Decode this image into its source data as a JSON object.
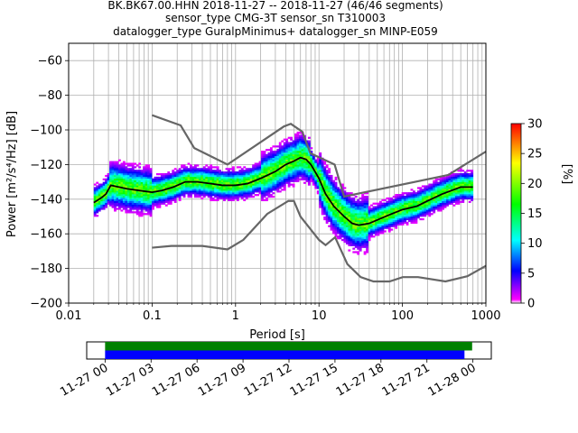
{
  "chart_data": [
    {
      "type": "heatmap",
      "title_lines": [
        "BK.BK67.00.HHN   2018-11-27 -- 2018-11-27  (46/46 segments)",
        "sensor_type CMG-3T sensor_sn T310003",
        "datalogger_type GuralpMinimus+ datalogger_sn MINP-E059"
      ],
      "xlabel": "Period [s]",
      "ylabel": "Power [m²/s⁴/Hz] [dB]",
      "x_scale": "log",
      "xlim": [
        0.01,
        1000
      ],
      "ylim": [
        -200,
        -50
      ],
      "x_ticks": [
        0.01,
        0.1,
        1,
        10,
        100,
        1000
      ],
      "x_tick_labels": [
        "0.01",
        "0.1",
        "1",
        "10",
        "100",
        "1000"
      ],
      "y_ticks": [
        -200,
        -180,
        -160,
        -140,
        -120,
        -100,
        -80,
        -60
      ],
      "y_tick_labels": [
        "−200",
        "−180",
        "−160",
        "−140",
        "−120",
        "−100",
        "−80",
        "−60"
      ],
      "grid": true,
      "colorbar": {
        "label": "[%]",
        "range": [
          0,
          30
        ],
        "ticks": [
          0,
          5,
          10,
          15,
          20,
          25,
          30
        ],
        "tick_labels": [
          "0",
          "5",
          "10",
          "15",
          "20",
          "25",
          "30"
        ],
        "colors": [
          "#ffffff",
          "#ff00ff",
          "#0000ff",
          "#00ffff",
          "#00ff00",
          "#ffff00",
          "#ff0000"
        ]
      },
      "nhnm": {
        "name": "NHNM",
        "x": [
          0.1,
          0.22,
          0.32,
          0.8,
          3.8,
          4.6,
          6.3,
          7.9,
          15.4,
          20,
          354.8,
          1000
        ],
        "y": [
          -91.5,
          -97.4,
          -110.5,
          -120,
          -98,
          -96.5,
          -101,
          -113.5,
          -120,
          -138.5,
          -126,
          -112.5
        ]
      },
      "nlnm": {
        "name": "NLNM",
        "x": [
          0.1,
          0.17,
          0.4,
          0.8,
          1.24,
          2.4,
          4.3,
          5.0,
          6.0,
          10.0,
          12.0,
          15.6,
          21.9,
          31.6,
          45.0,
          70.0,
          101.0,
          154.0,
          328.0,
          600.0,
          1000.0
        ],
        "y": [
          -168,
          -167,
          -167,
          -169,
          -163.5,
          -148.5,
          -141,
          -141,
          -150,
          -163.5,
          -166.5,
          -162,
          -177.5,
          -185,
          -187.5,
          -187.5,
          -185,
          -185,
          -187.5,
          -184.5,
          -178.5
        ]
      },
      "mode_curve": {
        "x": [
          0.02,
          0.025,
          0.028,
          0.032,
          0.04,
          0.05,
          0.07,
          0.1,
          0.13,
          0.18,
          0.25,
          0.35,
          0.5,
          0.7,
          1.0,
          1.4,
          2.0,
          3.0,
          4.0,
          5.0,
          6.0,
          7.0,
          8.0,
          10.0,
          12.0,
          15.0,
          20.0,
          25.0,
          30.0,
          40.0,
          50.0,
          70.0,
          100.0,
          150.0,
          200.0,
          300.0,
          500.0,
          700.0
        ],
        "y": [
          -142,
          -139,
          -137,
          -132,
          -133,
          -134,
          -135,
          -136,
          -135,
          -133,
          -130,
          -130,
          -131,
          -132,
          -132,
          -131,
          -128,
          -124,
          -120,
          -118,
          -116,
          -117,
          -120,
          -128,
          -137,
          -144,
          -150,
          -154,
          -155,
          -154,
          -152,
          -149,
          -146,
          -144,
          -141,
          -137,
          -133,
          -133
        ]
      },
      "time_axis": {
        "tick_labels": [
          "11-27 00",
          "11-27 03",
          "11-27 06",
          "11-27 09",
          "11-27 12",
          "11-27 15",
          "11-27 18",
          "11-27 21",
          "11-28 00"
        ],
        "tick_hours": [
          0,
          3,
          6,
          9,
          12,
          15,
          18,
          21,
          24
        ],
        "range_hours": [
          -1.2,
          25.2
        ],
        "bars": [
          {
            "color": "#008000",
            "start_hour": 0,
            "end_hour": 23.95
          },
          {
            "color": "#0000ff",
            "start_hour": 0,
            "end_hour": 23.45
          }
        ]
      }
    }
  ]
}
